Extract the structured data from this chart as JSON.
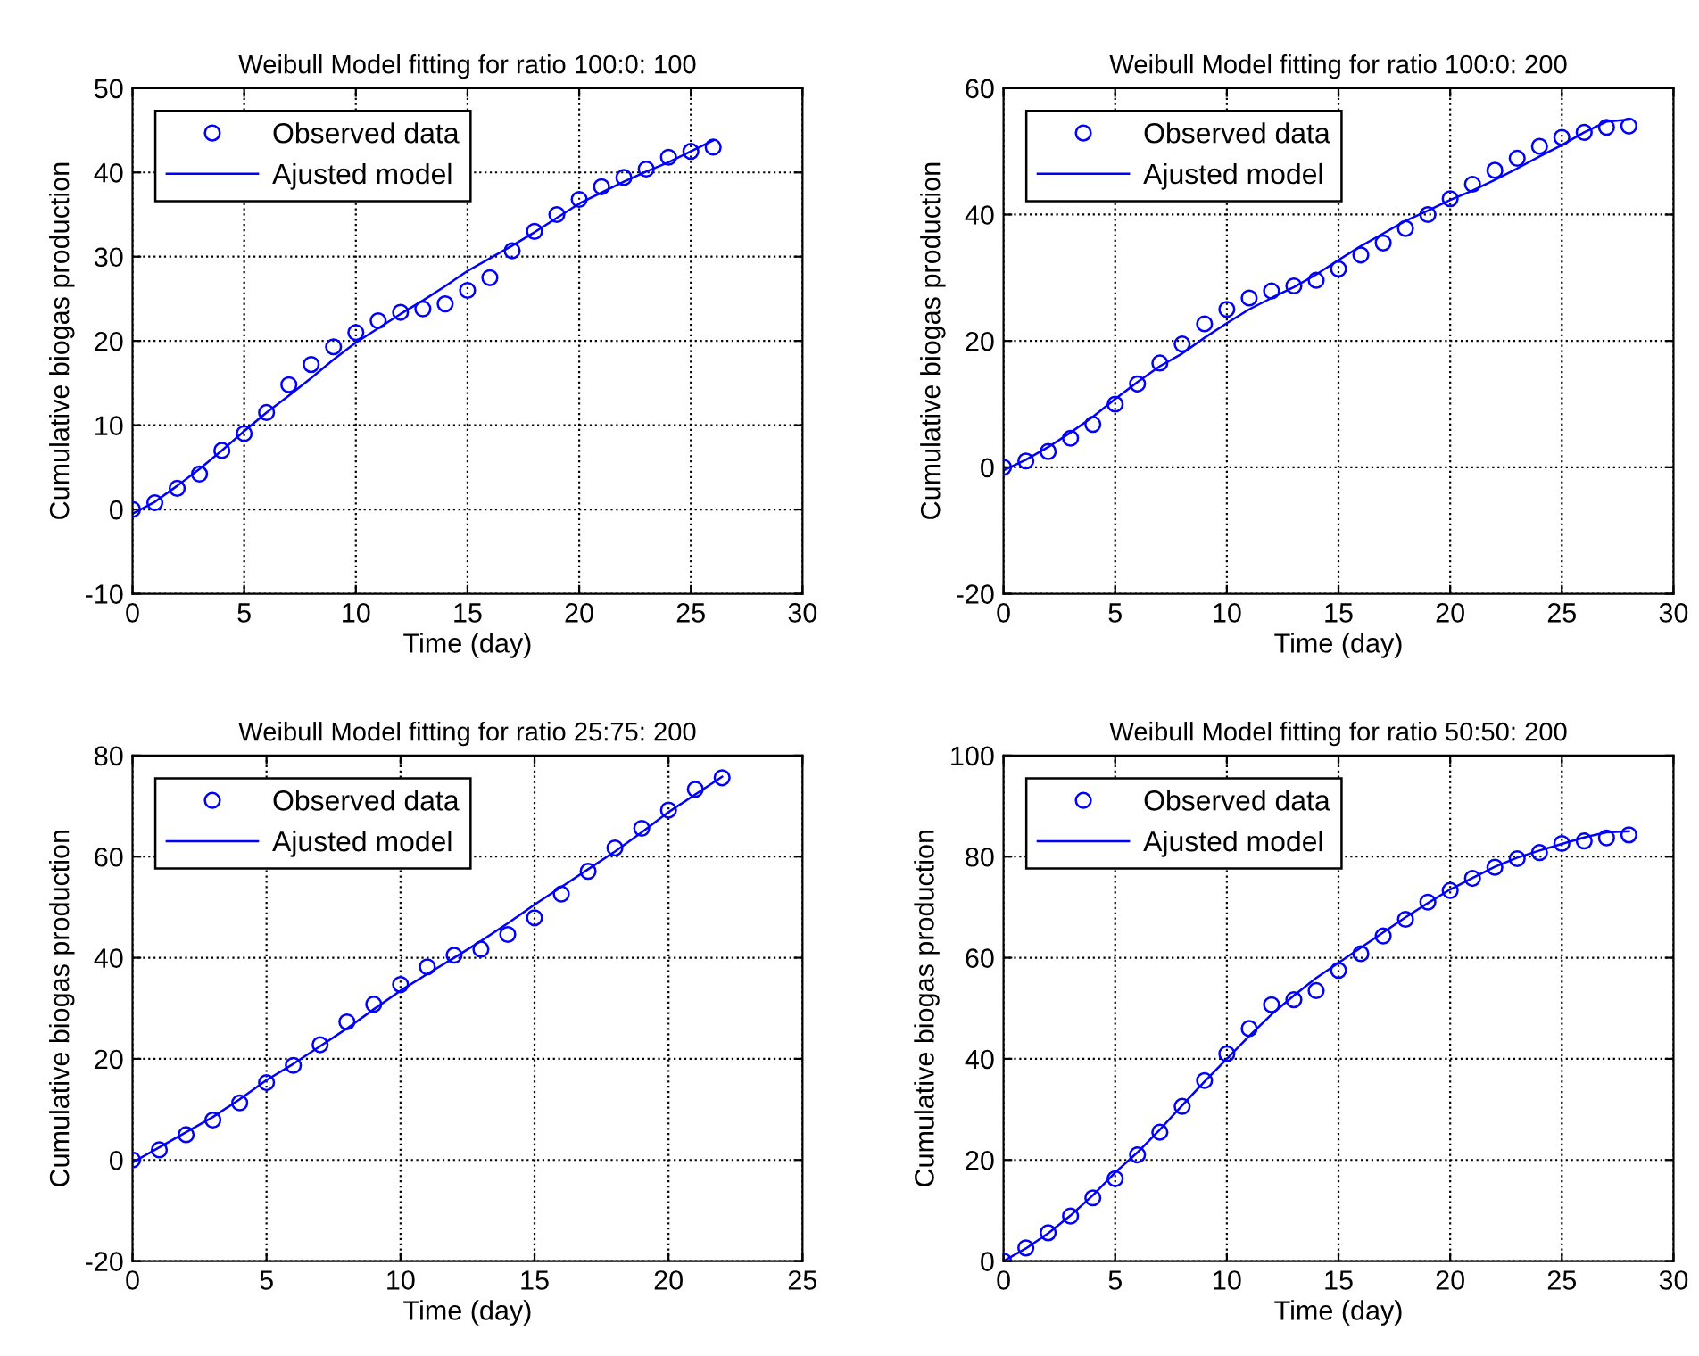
{
  "chart_data": [
    {
      "type": "scatter",
      "title": "Weibull Model fitting for ratio 100:0: 100",
      "xlabel": "Time (day)",
      "ylabel": "Cumulative biogas production",
      "xlim": [
        0,
        30
      ],
      "ylim": [
        -10,
        50
      ],
      "xticks": [
        0,
        5,
        10,
        15,
        20,
        25,
        30
      ],
      "yticks": [
        -10,
        0,
        10,
        20,
        30,
        40,
        50
      ],
      "grid": true,
      "legend": "top left",
      "series": [
        {
          "name": "Observed data",
          "marker": "circle",
          "color": "#0000ff",
          "x": [
            0,
            1,
            2,
            3,
            4,
            5,
            6,
            7,
            8,
            9,
            10,
            11,
            12,
            13,
            14,
            15,
            16,
            17,
            18,
            19,
            20,
            21,
            22,
            23,
            24,
            25,
            26
          ],
          "values": [
            0,
            0.8,
            2.5,
            4.2,
            7,
            9,
            11.5,
            14.8,
            17.2,
            19.3,
            21,
            22.4,
            23.4,
            23.8,
            24.4,
            26,
            27.5,
            30.7,
            33,
            35,
            36.8,
            38.3,
            39.4,
            40.4,
            41.8,
            42.5,
            43
          ]
        },
        {
          "name": "Ajusted model",
          "type": "line",
          "line_style": "solid",
          "color": "#0000ff",
          "x": [
            0,
            1,
            2,
            3,
            4,
            5,
            6,
            7,
            8,
            9,
            10,
            11,
            12,
            13,
            14,
            15,
            16,
            17,
            18,
            19,
            20,
            21,
            22,
            23,
            24,
            25,
            26
          ],
          "values": [
            -0.5,
            0.9,
            2.8,
            4.8,
            7,
            9.3,
            11.5,
            13.5,
            15.6,
            17.8,
            19.8,
            21.5,
            23.2,
            24.8,
            26.5,
            28.3,
            29.8,
            31.3,
            32.9,
            34.6,
            36.3,
            37.6,
            38.9,
            40.1,
            41.2,
            42.5,
            43.8
          ]
        }
      ]
    },
    {
      "type": "scatter",
      "title": "Weibull Model fitting for ratio 100:0: 200",
      "xlabel": "Time (day)",
      "ylabel": "Cumulative biogas production",
      "xlim": [
        0,
        30
      ],
      "ylim": [
        -20,
        60
      ],
      "xticks": [
        0,
        5,
        10,
        15,
        20,
        25,
        30
      ],
      "yticks": [
        -20,
        0,
        20,
        40,
        60
      ],
      "grid": true,
      "legend": "top left",
      "series": [
        {
          "name": "Observed data",
          "marker": "circle",
          "color": "#0000ff",
          "x": [
            0,
            1,
            2,
            3,
            4,
            5,
            6,
            7,
            8,
            9,
            10,
            11,
            12,
            13,
            14,
            15,
            16,
            17,
            18,
            19,
            20,
            21,
            22,
            23,
            24,
            25,
            26,
            27,
            28
          ],
          "values": [
            0,
            1,
            2.5,
            4.6,
            6.8,
            10,
            13.2,
            16.5,
            19.5,
            22.7,
            25,
            26.8,
            27.9,
            28.7,
            29.6,
            31.4,
            33.6,
            35.5,
            37.8,
            40,
            42.5,
            44.8,
            47,
            48.9,
            50.8,
            52.2,
            53,
            53.8,
            54
          ]
        },
        {
          "name": "Ajusted model",
          "type": "line",
          "line_style": "solid",
          "color": "#0000ff",
          "x": [
            0,
            1,
            2,
            3,
            4,
            5,
            6,
            7,
            8,
            9,
            10,
            11,
            12,
            13,
            14,
            15,
            16,
            17,
            18,
            19,
            20,
            21,
            22,
            23,
            24,
            25,
            26,
            27,
            28
          ],
          "values": [
            -0.5,
            1.2,
            3.2,
            5.5,
            8,
            10.8,
            13.5,
            16,
            18,
            20.5,
            22.8,
            25,
            26.8,
            28.5,
            30.5,
            32.8,
            35,
            37,
            39,
            40.6,
            42.3,
            43.8,
            45.5,
            47.3,
            49.2,
            51,
            53,
            54.7,
            55
          ]
        }
      ]
    },
    {
      "type": "scatter",
      "title": "Weibull Model fitting for ratio 25:75: 200",
      "xlabel": "Time (day)",
      "ylabel": "Cumulative biogas production",
      "xlim": [
        0,
        25
      ],
      "ylim": [
        -20,
        80
      ],
      "xticks": [
        0,
        5,
        10,
        15,
        20,
        25
      ],
      "yticks": [
        -20,
        0,
        20,
        40,
        60,
        80
      ],
      "grid": true,
      "legend": "top left",
      "series": [
        {
          "name": "Observed data",
          "marker": "circle",
          "color": "#0000ff",
          "x": [
            0,
            1,
            2,
            3,
            4,
            5,
            6,
            7,
            8,
            9,
            10,
            11,
            12,
            13,
            14,
            15,
            16,
            17,
            18,
            19,
            20,
            21,
            22
          ],
          "values": [
            0,
            2,
            5,
            7.9,
            11.3,
            15.3,
            18.7,
            22.8,
            27.3,
            30.8,
            34.7,
            38.2,
            40.5,
            41.7,
            44.6,
            47.9,
            52.6,
            57.1,
            61.7,
            65.6,
            69.2,
            73.3,
            75.6
          ]
        },
        {
          "name": "Ajusted model",
          "type": "line",
          "line_style": "solid",
          "color": "#0000ff",
          "x": [
            0,
            1,
            2,
            3,
            4,
            5,
            6,
            7,
            8,
            9,
            10,
            11,
            12,
            13,
            14,
            15,
            16,
            17,
            18,
            19,
            20,
            21,
            22
          ],
          "values": [
            -0.5,
            2.5,
            5.5,
            8.5,
            12,
            15.8,
            19,
            22.5,
            26,
            29.8,
            33.5,
            36.8,
            40,
            43.3,
            46.8,
            50.5,
            54,
            57.5,
            61,
            64.8,
            68.8,
            72.3,
            75.8
          ]
        }
      ]
    },
    {
      "type": "scatter",
      "title": "Weibull Model fitting for ratio 50:50: 200",
      "xlabel": "Time (day)",
      "ylabel": "Cumulative biogas production",
      "xlim": [
        0,
        30
      ],
      "ylim": [
        0,
        100
      ],
      "xticks": [
        0,
        5,
        10,
        15,
        20,
        25,
        30
      ],
      "yticks": [
        0,
        20,
        40,
        60,
        80,
        100
      ],
      "grid": true,
      "legend": "top left",
      "series": [
        {
          "name": "Observed data",
          "marker": "circle",
          "color": "#0000ff",
          "x": [
            0,
            1,
            2,
            3,
            4,
            5,
            6,
            7,
            8,
            9,
            10,
            11,
            12,
            13,
            14,
            15,
            16,
            17,
            18,
            19,
            20,
            21,
            22,
            23,
            24,
            25,
            26,
            27,
            28
          ],
          "values": [
            0,
            2.6,
            5.6,
            8.9,
            12.5,
            16.3,
            21,
            25.5,
            30.6,
            35.7,
            41,
            46,
            50.7,
            51.7,
            53.5,
            57.5,
            60.8,
            64.3,
            67.6,
            71,
            73.3,
            75.7,
            77.9,
            79.6,
            80.8,
            82.6,
            83.1,
            83.7,
            84.3
          ]
        },
        {
          "name": "Ajusted model",
          "type": "line",
          "line_style": "solid",
          "color": "#0000ff",
          "x": [
            0,
            1,
            2,
            3,
            4,
            5,
            6,
            7,
            8,
            9,
            10,
            11,
            12,
            13,
            14,
            15,
            16,
            17,
            18,
            19,
            20,
            21,
            22,
            23,
            24,
            25,
            26,
            27,
            28
          ],
          "values": [
            0,
            2.5,
            5.5,
            9,
            13,
            17.5,
            21.5,
            26,
            30.8,
            35.5,
            40,
            44.5,
            48.8,
            52.5,
            56,
            59,
            62,
            65,
            68,
            70.8,
            73.5,
            75.8,
            78,
            79.8,
            81.2,
            82.5,
            83.8,
            84.8,
            85
          ]
        }
      ]
    }
  ]
}
